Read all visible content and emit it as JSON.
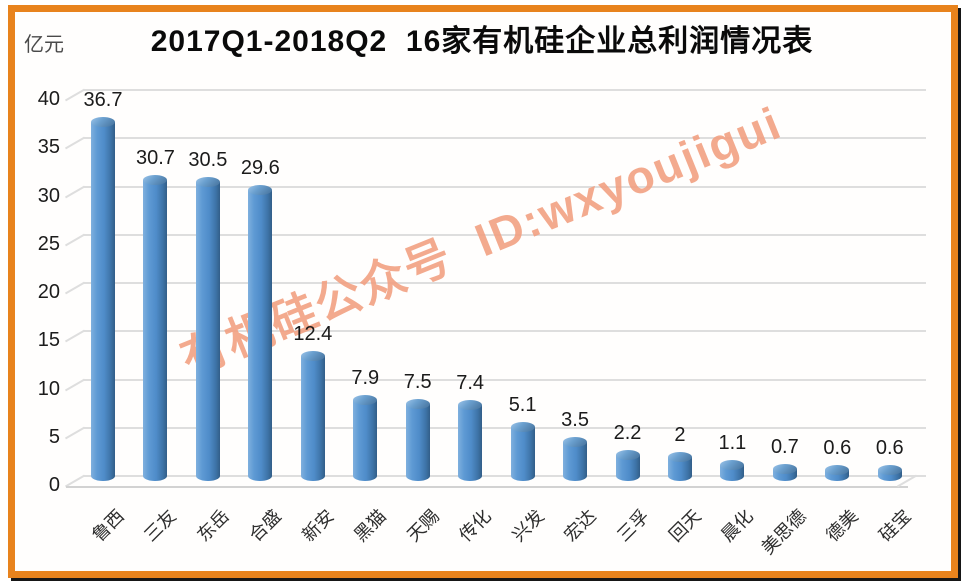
{
  "window": {
    "background": "#ffffff",
    "border_color": "#e8831d",
    "border_shadow_color": "#161616"
  },
  "chart_data": {
    "type": "bar",
    "bar_style": "3d-cylinder",
    "title": "2017Q1-2018Q2  16家有机硅企业总利润情况表",
    "unit_label": "亿元",
    "xlabel": "",
    "ylabel": "亿元",
    "categories": [
      "鲁西",
      "三友",
      "东岳",
      "合盛",
      "新安",
      "黑猫",
      "天赐",
      "传化",
      "兴发",
      "宏达",
      "三孚",
      "回天",
      "晨化",
      "美思德",
      "德美",
      "硅宝"
    ],
    "values": [
      36.7,
      30.7,
      30.5,
      29.6,
      12.4,
      7.9,
      7.5,
      7.4,
      5.1,
      3.5,
      2.2,
      2,
      1.1,
      0.7,
      0.6,
      0.6
    ],
    "value_labels": [
      "36.7",
      "30.7",
      "30.5",
      "29.6",
      "12.4",
      "7.9",
      "7.5",
      "7.4",
      "5.1",
      "3.5",
      "2.2",
      "2",
      "1.1",
      "0.7",
      "0.6",
      "0.6"
    ],
    "y_ticks": [
      0,
      5,
      10,
      15,
      20,
      25,
      30,
      35,
      40
    ],
    "ylim": [
      0,
      40
    ],
    "grid": true,
    "legend": "none",
    "bar_color": "#4f8cc9",
    "gridline_color": "#dedede",
    "label_color": "#1b1b1b"
  },
  "watermark": {
    "text": "有机硅公众号  ID:wxyoujigui",
    "color": "#f2a183"
  }
}
